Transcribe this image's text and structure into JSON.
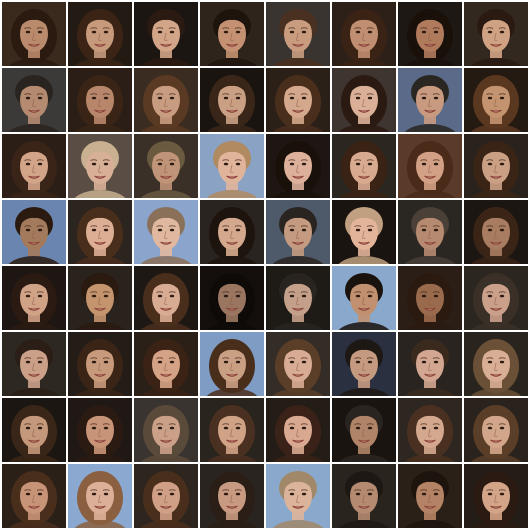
{
  "grid": {
    "rows": 8,
    "cols": 8,
    "tiles": [
      {
        "bg": "#3a2a1e",
        "skin": "#b98a6c",
        "hair": "#2a1a10",
        "long": true
      },
      {
        "bg": "#241a14",
        "skin": "#c79a7c",
        "hair": "#3b2416",
        "long": true
      },
      {
        "bg": "#1c1612",
        "skin": "#d2a488",
        "hair": "#2b1a12",
        "long": false
      },
      {
        "bg": "#2e241c",
        "skin": "#c49272",
        "hair": "#1e140e",
        "long": false
      },
      {
        "bg": "#3a3430",
        "skin": "#c99c80",
        "hair": "#4a3020",
        "long": false
      },
      {
        "bg": "#2c2018",
        "skin": "#c08e70",
        "hair": "#3a2214",
        "long": true
      },
      {
        "bg": "#1e1814",
        "skin": "#b07a5c",
        "hair": "#1a100a",
        "long": true
      },
      {
        "bg": "#322820",
        "skin": "#d0a284",
        "hair": "#2a1a12",
        "long": false
      },
      {
        "bg": "#3c3a38",
        "skin": "#b48a70",
        "hair": "#2a2420",
        "long": false
      },
      {
        "bg": "#2a1e16",
        "skin": "#b8866a",
        "hair": "#3a2416",
        "long": true
      },
      {
        "bg": "#3a2c20",
        "skin": "#c89c80",
        "hair": "#5a3a22",
        "long": true
      },
      {
        "bg": "#1a1410",
        "skin": "#c9a084",
        "hair": "#3a2618",
        "long": true
      },
      {
        "bg": "#2a2018",
        "skin": "#d4a88c",
        "hair": "#4a2e1c",
        "long": true
      },
      {
        "bg": "#3e3430",
        "skin": "#dbb098",
        "hair": "#2a1a12",
        "long": true
      },
      {
        "bg": "#5a6a88",
        "skin": "#c89a80",
        "hair": "#2a2622",
        "long": false
      },
      {
        "bg": "#241a12",
        "skin": "#c49470",
        "hair": "#5a3820",
        "long": true
      },
      {
        "bg": "#2a1e16",
        "skin": "#d2a488",
        "hair": "#3a2418",
        "long": true
      },
      {
        "bg": "#5a4e44",
        "skin": "#d8b098",
        "hair": "#c8b090",
        "long": false
      },
      {
        "bg": "#3a3028",
        "skin": "#c09478",
        "hair": "#6a5a40",
        "long": false
      },
      {
        "bg": "#8aa2c4",
        "skin": "#e0b49a",
        "hair": "#b08a60",
        "long": false
      },
      {
        "bg": "#1e1612",
        "skin": "#dcb09a",
        "hair": "#1a100a",
        "long": true
      },
      {
        "bg": "#2c2620",
        "skin": "#d8aa90",
        "hair": "#3a2214",
        "long": true
      },
      {
        "bg": "#5a3a28",
        "skin": "#d2a084",
        "hair": "#4a2a18",
        "long": true
      },
      {
        "bg": "#2a221c",
        "skin": "#caa084",
        "hair": "#3a2416",
        "long": true
      },
      {
        "bg": "#6a86b0",
        "skin": "#a47a5c",
        "hair": "#2a1a10",
        "long": false
      },
      {
        "bg": "#2c241e",
        "skin": "#dcae94",
        "hair": "#4a2e1c",
        "long": true
      },
      {
        "bg": "#8aa4cc",
        "skin": "#e0b8a0",
        "hair": "#8a7058",
        "long": false
      },
      {
        "bg": "#2a2420",
        "skin": "#d4a88c",
        "hair": "#1e140e",
        "long": true
      },
      {
        "bg": "#4e5a6a",
        "skin": "#c49a80",
        "hair": "#2a2420",
        "long": false
      },
      {
        "bg": "#1a1410",
        "skin": "#e2b49a",
        "hair": "#c0a080",
        "long": false
      },
      {
        "bg": "#2a2622",
        "skin": "#b68a70",
        "hair": "#4a4038",
        "long": false
      },
      {
        "bg": "#1c1612",
        "skin": "#a87c60",
        "hair": "#3a2416",
        "long": true
      },
      {
        "bg": "#1e1612",
        "skin": "#d0a286",
        "hair": "#2a1a12",
        "long": true
      },
      {
        "bg": "#2a221c",
        "skin": "#c4946e",
        "hair": "#2a1a10",
        "long": false
      },
      {
        "bg": "#1e1814",
        "skin": "#d8ac92",
        "hair": "#4a2e1c",
        "long": true
      },
      {
        "bg": "#140e0c",
        "skin": "#9a7660",
        "hair": "#0e0a08",
        "long": true
      },
      {
        "bg": "#1e1a16",
        "skin": "#c4a08a",
        "hair": "#2a2420",
        "long": false
      },
      {
        "bg": "#8aa8cc",
        "skin": "#c09070",
        "hair": "#1a120c",
        "long": false
      },
      {
        "bg": "#2a1e16",
        "skin": "#9a6a4c",
        "hair": "#2a1a10",
        "long": true
      },
      {
        "bg": "#2c2620",
        "skin": "#caa08a",
        "hair": "#3a3028",
        "long": true
      },
      {
        "bg": "#2e2822",
        "skin": "#caa088",
        "hair": "#2a1e16",
        "long": false
      },
      {
        "bg": "#241c16",
        "skin": "#c89a7c",
        "hair": "#3a2416",
        "long": true
      },
      {
        "bg": "#2a2018",
        "skin": "#d4a284",
        "hair": "#3a2214",
        "long": true
      },
      {
        "bg": "#7e9cc4",
        "skin": "#caa084",
        "hair": "#4a2e1c",
        "long": true
      },
      {
        "bg": "#342c26",
        "skin": "#d8ac94",
        "hair": "#5a3e28",
        "long": true
      },
      {
        "bg": "#2a3040",
        "skin": "#c49a80",
        "hair": "#1e1814",
        "long": false
      },
      {
        "bg": "#2a2420",
        "skin": "#d2a690",
        "hair": "#3a2a1e",
        "long": false
      },
      {
        "bg": "#2a241e",
        "skin": "#d8ae94",
        "hair": "#6a5036",
        "long": true
      },
      {
        "bg": "#1c1612",
        "skin": "#c4987a",
        "hair": "#3a2618",
        "long": true
      },
      {
        "bg": "#201814",
        "skin": "#c89478",
        "hair": "#2a1a12",
        "long": true
      },
      {
        "bg": "#3a3430",
        "skin": "#caa088",
        "hair": "#5a4a3a",
        "long": true
      },
      {
        "bg": "#2a241e",
        "skin": "#d0a286",
        "hair": "#4a3020",
        "long": true
      },
      {
        "bg": "#241c16",
        "skin": "#d8a890",
        "hair": "#3a2218",
        "long": true
      },
      {
        "bg": "#1a1410",
        "skin": "#b08468",
        "hair": "#2a2420",
        "long": false
      },
      {
        "bg": "#2e2620",
        "skin": "#d4a88e",
        "hair": "#4a3020",
        "long": true
      },
      {
        "bg": "#2a221c",
        "skin": "#d2a68a",
        "hair": "#5a3e28",
        "long": true
      },
      {
        "bg": "#2a2018",
        "skin": "#c89478",
        "hair": "#4a2e1c",
        "long": true
      },
      {
        "bg": "#8aa8d0",
        "skin": "#dcb098",
        "hair": "#8a6040",
        "long": true
      },
      {
        "bg": "#2e261e",
        "skin": "#d0a086",
        "hair": "#4a2e1c",
        "long": true
      },
      {
        "bg": "#2a2420",
        "skin": "#c89a82",
        "hair": "#2a1e16",
        "long": true
      },
      {
        "bg": "#8aa8cc",
        "skin": "#dcb49c",
        "hair": "#a08868",
        "long": false
      },
      {
        "bg": "#2a241e",
        "skin": "#b48a70",
        "hair": "#1e1814",
        "long": false
      },
      {
        "bg": "#2a2018",
        "skin": "#b48264",
        "hair": "#1e140e",
        "long": false
      },
      {
        "bg": "#241c16",
        "skin": "#d4a488",
        "hair": "#2a1a12",
        "long": true
      }
    ]
  }
}
